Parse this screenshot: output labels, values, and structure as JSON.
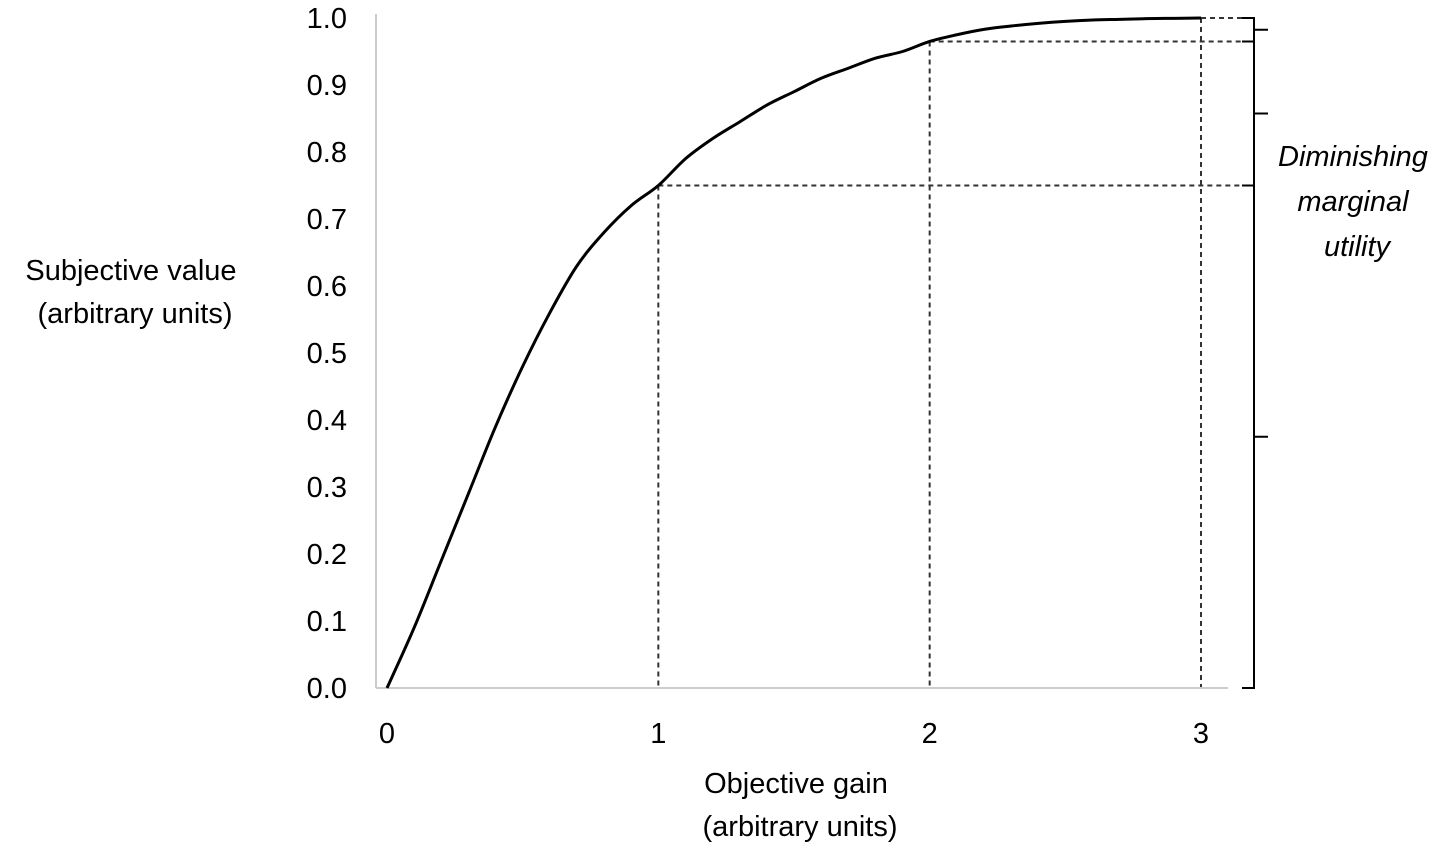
{
  "chart_data": {
    "type": "line",
    "title": "",
    "xlabel": [
      "Objective gain",
      "(arbitrary units)"
    ],
    "ylabel": [
      "Subjective value",
      "(arbitrary units)"
    ],
    "xlim": [
      0,
      3
    ],
    "ylim": [
      0,
      1
    ],
    "x_ticks": [
      "0",
      "1",
      "2",
      "3"
    ],
    "y_ticks": [
      "0.0",
      "0.1",
      "0.2",
      "0.3",
      "0.4",
      "0.5",
      "0.6",
      "0.7",
      "0.8",
      "0.9",
      "1.0"
    ],
    "grid": false,
    "legend": "none",
    "series": [
      {
        "x": [
          0,
          0.1,
          0.2,
          0.3,
          0.4,
          0.5,
          0.6,
          0.7,
          0.8,
          0.9,
          1.0,
          1.1,
          1.2,
          1.3,
          1.4,
          1.5,
          1.6,
          1.7,
          1.8,
          1.9,
          2.0,
          2.1,
          2.2,
          2.3,
          2.4,
          2.5,
          2.6,
          2.7,
          2.8,
          2.9,
          3.0
        ],
        "y": [
          0.0,
          0.09,
          0.19,
          0.29,
          0.39,
          0.48,
          0.56,
          0.63,
          0.68,
          0.72,
          0.75,
          0.79,
          0.82,
          0.845,
          0.87,
          0.89,
          0.91,
          0.925,
          0.94,
          0.95,
          0.965,
          0.975,
          0.983,
          0.988,
          0.992,
          0.995,
          0.997,
          0.998,
          0.999,
          0.9995,
          1.0
        ]
      }
    ],
    "reference_points": [
      {
        "x": 1,
        "y": 0.75
      },
      {
        "x": 2,
        "y": 0.965
      },
      {
        "x": 3,
        "y": 1.0
      }
    ],
    "annotation": {
      "text": [
        "Diminishing",
        "marginal",
        "utility"
      ],
      "brackets": [
        {
          "from": 0.0,
          "to": 0.75
        },
        {
          "from": 0.75,
          "to": 0.965
        },
        {
          "from": 0.965,
          "to": 1.0
        }
      ]
    },
    "colors": {
      "curve": "#000000",
      "axis": "#cccccc",
      "guide": "#333333",
      "text": "#000000"
    }
  }
}
